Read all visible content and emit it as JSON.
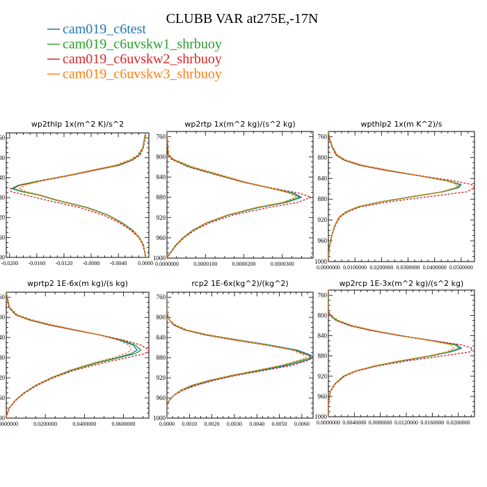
{
  "figure": {
    "title": "CLUBB VAR at275E,-17N",
    "legend": [
      {
        "name": "cam019_c6test",
        "color": "#1f77b4",
        "dash": "solid"
      },
      {
        "name": "cam019_c6uvskw1_shrbuoy",
        "color": "#2ca02c",
        "dash": "solid"
      },
      {
        "name": "cam019_c6uvskw2_shrbuoy",
        "color": "#d62728",
        "dash": "dashed"
      },
      {
        "name": "cam019_c6uvskw3_shrbuoy",
        "color": "#ff7f0e",
        "dash": "dashed"
      }
    ]
  },
  "chart_data": [
    {
      "type": "line",
      "title": "wp2thlp   1x(m^2 K)/s^2",
      "xlim": [
        -0.0205,
        0.0005
      ],
      "xticks": [
        -0.02,
        -0.016,
        -0.012,
        -0.008,
        -0.004,
        0.0
      ],
      "xtick_labels": [
        "-0.0200",
        "-0.0160",
        "-0.0120",
        "-0.0080",
        "-0.0040",
        "0.0000"
      ],
      "ylim": [
        1000,
        750
      ],
      "yticks": [
        760,
        800,
        840,
        880,
        920,
        960,
        1000
      ],
      "y": [
        750,
        765,
        780,
        795,
        805,
        815,
        825,
        835,
        845,
        855,
        862,
        868,
        875,
        885,
        900,
        915,
        930,
        945,
        960,
        975,
        990,
        1000
      ],
      "series": [
        {
          "name": "cam019_c6test",
          "values": [
            0.0,
            -0.0002,
            -0.0004,
            -0.001,
            -0.002,
            -0.004,
            -0.0076,
            -0.011,
            -0.015,
            -0.0185,
            -0.0195,
            -0.018,
            -0.0155,
            -0.013,
            -0.0085,
            -0.0055,
            -0.0035,
            -0.0019,
            -0.0009,
            -0.0003,
            -0.0001,
            0.0
          ]
        },
        {
          "name": "cam019_c6uvskw1_shrbuoy",
          "values": [
            0.0,
            -0.0002,
            -0.0004,
            -0.001,
            -0.0021,
            -0.0041,
            -0.0077,
            -0.0112,
            -0.0152,
            -0.0187,
            -0.0197,
            -0.0182,
            -0.0157,
            -0.0132,
            -0.0087,
            -0.0056,
            -0.0036,
            -0.002,
            -0.0009,
            -0.0003,
            -0.0001,
            0.0
          ]
        },
        {
          "name": "cam019_c6uvskw2_shrbuoy",
          "values": [
            0.0,
            -0.0001,
            -0.0003,
            -0.0008,
            -0.002,
            -0.0038,
            -0.0074,
            -0.011,
            -0.0148,
            -0.0184,
            -0.0199,
            -0.0198,
            -0.0176,
            -0.0146,
            -0.0097,
            -0.0062,
            -0.0039,
            -0.0022,
            -0.001,
            -0.0004,
            -0.0001,
            0.0
          ]
        },
        {
          "name": "cam019_c6uvskw3_shrbuoy",
          "values": [
            0.0,
            -0.0002,
            -0.0004,
            -0.0012,
            -0.0025,
            -0.0045,
            -0.008,
            -0.0113,
            -0.015,
            -0.0178,
            -0.0186,
            -0.0176,
            -0.0154,
            -0.0131,
            -0.0087,
            -0.0056,
            -0.0036,
            -0.002,
            -0.0009,
            -0.0003,
            -0.0001,
            0.0
          ]
        }
      ]
    },
    {
      "type": "line",
      "title": "wp2rtp   1x(m^2 kg)/(s^2 kg)",
      "xlim": [
        0.0,
        3.8e-05
      ],
      "xticks": [
        0.0,
        1e-05,
        2e-05,
        3e-05
      ],
      "xtick_labels": [
        "0.0000000",
        "0.0000100",
        "0.0000200",
        "0.0000300"
      ],
      "ylim": [
        1000,
        750
      ],
      "yticks": [
        760,
        800,
        840,
        880,
        920,
        960,
        1000
      ],
      "y": [
        750,
        795,
        805,
        820,
        835,
        850,
        862,
        872,
        880,
        890,
        900,
        915,
        930,
        945,
        960,
        975,
        990,
        1000
      ],
      "series": [
        {
          "name": "cam019_c6test",
          "values": [
            0.0,
            3e-07,
            1.5e-06,
            6e-06,
            1.3e-05,
            2e-05,
            2.7e-05,
            3.3e-05,
            3.5e-05,
            3.1e-05,
            2.4e-05,
            1.6e-05,
            1.05e-05,
            6.8e-06,
            4.2e-06,
            2.3e-06,
            8e-07,
            0.0
          ]
        },
        {
          "name": "cam019_c6uvskw1_shrbuoy",
          "values": [
            0.0,
            3e-07,
            1.5e-06,
            6e-06,
            1.3e-05,
            2e-05,
            2.7e-05,
            3.25e-05,
            3.45e-05,
            3.05e-05,
            2.36e-05,
            1.58e-05,
            1.04e-05,
            6.7e-06,
            4.1e-06,
            2.2e-06,
            8e-07,
            0.0
          ]
        },
        {
          "name": "cam019_c6uvskw2_shrbuoy",
          "values": [
            0.0,
            2e-07,
            1.2e-06,
            5.5e-06,
            1.25e-05,
            1.98e-05,
            2.75e-05,
            3.45e-05,
            3.75e-05,
            3.4e-05,
            2.65e-05,
            1.72e-05,
            1.12e-05,
            7.2e-06,
            4.4e-06,
            2.4e-06,
            9e-07,
            0.0
          ]
        },
        {
          "name": "cam019_c6uvskw3_shrbuoy",
          "values": [
            0.0,
            4e-07,
            1.8e-06,
            6.8e-06,
            1.38e-05,
            2.05e-05,
            2.72e-05,
            3.18e-05,
            3.35e-05,
            3e-05,
            2.32e-05,
            1.56e-05,
            1.03e-05,
            6.6e-06,
            4.1e-06,
            2.2e-06,
            8e-07,
            0.0
          ]
        }
      ]
    },
    {
      "type": "line",
      "title": "wpthlp2   1x(m K^2)/s",
      "xlim": [
        0.0,
        0.055
      ],
      "xticks": [
        0.0,
        0.01,
        0.02,
        0.03,
        0.04,
        0.05
      ],
      "xtick_labels": [
        "0.0000000",
        "0.0100000",
        "0.0200000",
        "0.0300000",
        "0.0400000",
        "0.0500000"
      ],
      "ylim": [
        1000,
        750
      ],
      "yticks": [
        760,
        800,
        840,
        880,
        920,
        960,
        1000
      ],
      "y": [
        750,
        765,
        780,
        795,
        805,
        815,
        825,
        835,
        845,
        852,
        858,
        866,
        875,
        885,
        895,
        905,
        915,
        930,
        945,
        960,
        975,
        990,
        1000
      ],
      "series": [
        {
          "name": "cam019_c6test",
          "values": [
            0.0,
            0.0005,
            0.0015,
            0.003,
            0.006,
            0.012,
            0.022,
            0.034,
            0.045,
            0.05,
            0.049,
            0.043,
            0.032,
            0.02,
            0.011,
            0.0065,
            0.004,
            0.0025,
            0.0015,
            0.0008,
            0.0003,
            0.0001,
            0.0
          ]
        },
        {
          "name": "cam019_c6uvskw1_shrbuoy",
          "values": [
            0.0,
            0.0005,
            0.0015,
            0.003,
            0.006,
            0.0122,
            0.0222,
            0.0342,
            0.0452,
            0.0495,
            0.0484,
            0.0428,
            0.0318,
            0.0198,
            0.0109,
            0.0064,
            0.004,
            0.0025,
            0.0015,
            0.0008,
            0.0003,
            0.0001,
            0.0
          ]
        },
        {
          "name": "cam019_c6uvskw2_shrbuoy",
          "values": [
            0.0,
            0.0004,
            0.0014,
            0.0028,
            0.0058,
            0.0118,
            0.0218,
            0.0345,
            0.0475,
            0.054,
            0.055,
            0.052,
            0.038,
            0.023,
            0.012,
            0.007,
            0.0043,
            0.0027,
            0.0016,
            0.0009,
            0.0003,
            0.0001,
            0.0
          ]
        },
        {
          "name": "cam019_c6uvskw3_shrbuoy",
          "values": [
            0.0,
            0.0006,
            0.0017,
            0.0034,
            0.0068,
            0.0132,
            0.0235,
            0.0345,
            0.0445,
            0.0485,
            0.0478,
            0.0425,
            0.0316,
            0.0197,
            0.0108,
            0.0063,
            0.0039,
            0.0025,
            0.0015,
            0.0008,
            0.0003,
            0.0001,
            0.0
          ]
        }
      ]
    },
    {
      "type": "line",
      "title": "wprtp2   1E-6x(m kg)/(s kg)",
      "xlim": [
        0.0,
        0.073
      ],
      "xticks": [
        0.0,
        0.02,
        0.04,
        0.06
      ],
      "xtick_labels": [
        "0.0000000",
        "0.0200000",
        "0.0400000",
        "0.0600000"
      ],
      "ylim": [
        1000,
        750
      ],
      "yticks": [
        760,
        800,
        840,
        880,
        920,
        960,
        1000
      ],
      "y": [
        750,
        780,
        795,
        805,
        815,
        825,
        835,
        845,
        855,
        865,
        872,
        880,
        890,
        905,
        920,
        935,
        950,
        965,
        980,
        990,
        1000
      ],
      "series": [
        {
          "name": "cam019_c6test",
          "values": [
            0.0,
            0.0015,
            0.005,
            0.012,
            0.022,
            0.035,
            0.048,
            0.058,
            0.065,
            0.067,
            0.064,
            0.057,
            0.046,
            0.033,
            0.023,
            0.015,
            0.009,
            0.0045,
            0.0015,
            0.0005,
            0.0
          ]
        },
        {
          "name": "cam019_c6uvskw1_shrbuoy",
          "values": [
            0.0,
            0.0015,
            0.005,
            0.012,
            0.022,
            0.035,
            0.048,
            0.059,
            0.066,
            0.069,
            0.066,
            0.058,
            0.047,
            0.0335,
            0.0232,
            0.0152,
            0.0091,
            0.0046,
            0.0015,
            0.0005,
            0.0
          ]
        },
        {
          "name": "cam019_c6uvskw2_shrbuoy",
          "values": [
            0.0,
            0.0013,
            0.0048,
            0.0115,
            0.0215,
            0.0345,
            0.048,
            0.06,
            0.069,
            0.073,
            0.071,
            0.062,
            0.05,
            0.035,
            0.024,
            0.0158,
            0.0095,
            0.0048,
            0.0016,
            0.0005,
            0.0
          ]
        },
        {
          "name": "cam019_c6uvskw3_shrbuoy",
          "values": [
            0.0,
            0.0018,
            0.0058,
            0.0135,
            0.024,
            0.036,
            0.048,
            0.057,
            0.063,
            0.064,
            0.061,
            0.055,
            0.045,
            0.0325,
            0.0228,
            0.015,
            0.009,
            0.0045,
            0.0015,
            0.0005,
            0.0
          ]
        }
      ]
    },
    {
      "type": "line",
      "title": "rcp2   1E-6x(kg^2)/(kg^2)",
      "xlim": [
        0.0,
        0.0065
      ],
      "xticks": [
        0.0,
        0.001,
        0.002,
        0.003,
        0.004,
        0.005,
        0.006
      ],
      "xtick_labels": [
        "0.0000",
        "0.0010",
        "0.0020",
        "0.0030",
        "0.0040",
        "0.0050",
        "0.0060"
      ],
      "ylim": [
        1000,
        750
      ],
      "yticks": [
        760,
        800,
        840,
        880,
        920,
        960,
        1000
      ],
      "y": [
        750,
        790,
        805,
        815,
        825,
        835,
        845,
        855,
        865,
        875,
        880,
        885,
        895,
        905,
        915,
        925,
        935,
        945,
        955,
        965,
        975,
        1000
      ],
      "series": [
        {
          "name": "cam019_c6test",
          "values": [
            0.0,
            0.0,
            0.0001,
            0.0003,
            0.0008,
            0.0018,
            0.0032,
            0.0046,
            0.0058,
            0.0064,
            0.0065,
            0.0062,
            0.0054,
            0.0042,
            0.003,
            0.002,
            0.0012,
            0.0006,
            0.0003,
            0.0001,
            0.0,
            0.0
          ]
        },
        {
          "name": "cam019_c6uvskw1_shrbuoy",
          "values": [
            0.0,
            0.0,
            0.0001,
            0.0003,
            0.0008,
            0.0018,
            0.0031,
            0.0045,
            0.0057,
            0.0063,
            0.0064,
            0.006,
            0.0052,
            0.0041,
            0.0029,
            0.0019,
            0.0011,
            0.0006,
            0.0003,
            0.0001,
            0.0,
            0.0
          ]
        },
        {
          "name": "cam019_c6uvskw2_shrbuoy",
          "values": [
            0.0,
            0.0,
            0.0001,
            0.0003,
            0.0008,
            0.0017,
            0.003,
            0.0044,
            0.0056,
            0.0063,
            0.0065,
            0.0063,
            0.0056,
            0.0044,
            0.0031,
            0.0021,
            0.0013,
            0.0007,
            0.0003,
            0.0001,
            0.0,
            0.0
          ]
        },
        {
          "name": "cam019_c6uvskw3_shrbuoy",
          "values": [
            0.0,
            0.0,
            0.0001,
            0.0004,
            0.0009,
            0.0019,
            0.0032,
            0.0045,
            0.0056,
            0.0061,
            0.0062,
            0.0059,
            0.0051,
            0.004,
            0.0029,
            0.0019,
            0.0011,
            0.0006,
            0.0003,
            0.0001,
            0.0,
            0.0
          ]
        }
      ]
    },
    {
      "type": "line",
      "title": "wp2rcp   1E-3x(m^2 kg)/(s^2 kg)",
      "xlim": [
        0.0,
        0.0225
      ],
      "xticks": [
        0.0,
        0.004,
        0.008,
        0.012,
        0.016,
        0.02
      ],
      "xtick_labels": [
        "0.0000000",
        "0.0040000",
        "0.0080000",
        "0.0120000",
        "0.0160000",
        "0.0200000"
      ],
      "ylim": [
        1000,
        750
      ],
      "yticks": [
        760,
        800,
        840,
        880,
        920,
        960,
        1000
      ],
      "y": [
        750,
        790,
        800,
        810,
        820,
        830,
        840,
        850,
        858,
        865,
        872,
        880,
        890,
        900,
        910,
        920,
        935,
        950,
        965,
        980,
        1000
      ],
      "series": [
        {
          "name": "cam019_c6test",
          "values": [
            0.0,
            0.0,
            0.0003,
            0.0013,
            0.0034,
            0.0068,
            0.0112,
            0.0162,
            0.0198,
            0.0205,
            0.0188,
            0.0158,
            0.0112,
            0.0072,
            0.0042,
            0.0024,
            0.001,
            0.0003,
            0.0001,
            0.0,
            0.0
          ]
        },
        {
          "name": "cam019_c6uvskw1_shrbuoy",
          "values": [
            0.0,
            0.0,
            0.0003,
            0.0013,
            0.0034,
            0.0068,
            0.0111,
            0.016,
            0.0195,
            0.0202,
            0.0186,
            0.0156,
            0.011,
            0.0071,
            0.0041,
            0.0023,
            0.001,
            0.0003,
            0.0001,
            0.0,
            0.0
          ]
        },
        {
          "name": "cam019_c6uvskw2_shrbuoy",
          "values": [
            0.0,
            0.0,
            0.0002,
            0.0012,
            0.0032,
            0.0066,
            0.011,
            0.0162,
            0.0205,
            0.0222,
            0.0218,
            0.0176,
            0.012,
            0.0075,
            0.0043,
            0.0025,
            0.0011,
            0.0003,
            0.0001,
            0.0,
            0.0
          ]
        },
        {
          "name": "cam019_c6uvskw3_shrbuoy",
          "values": [
            0.0,
            0.0,
            0.0004,
            0.0016,
            0.0038,
            0.0072,
            0.0114,
            0.0158,
            0.0188,
            0.0194,
            0.0182,
            0.0154,
            0.0108,
            0.007,
            0.0041,
            0.0023,
            0.001,
            0.0003,
            0.0001,
            0.0,
            0.0
          ]
        }
      ]
    }
  ]
}
